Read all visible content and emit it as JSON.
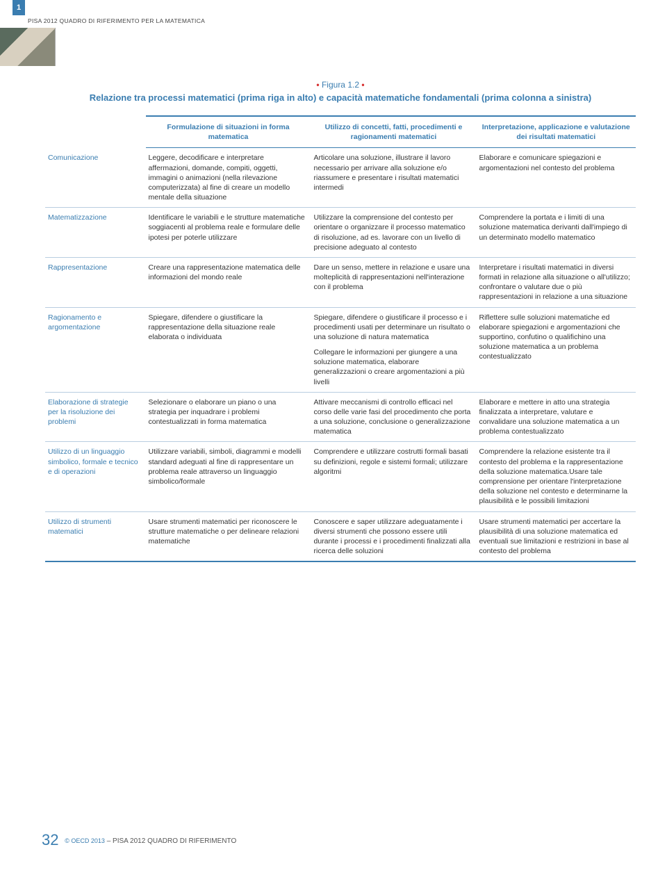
{
  "page_tab": "1",
  "running_head": "PISA 2012 QUADRO DI RIFERIMENTO PER LA MATEMATICA",
  "figure": {
    "label_prefix": "Figura ",
    "label_num": "1.2",
    "title": "Relazione tra processi matematici (prima riga in alto) e capacità matematiche fondamentali (prima colonna a sinistra)"
  },
  "headers": {
    "c1": "",
    "c2": "Formulazione di situazioni in forma matematica",
    "c3": "Utilizzo di concetti, fatti, procedimenti e ragionamenti matematici",
    "c4": "Interpretazione, applicazione e valutazione dei risultati matematici"
  },
  "rows": [
    {
      "label": "Comunicazione",
      "c2": "Leggere, decodificare e interpretare affermazioni, domande, compiti, oggetti, immagini o animazioni (nella  rilevazione computerizzata) al fine di creare un modello mentale della situazione",
      "c3": "Articolare una soluzione, illustrare il lavoro necessario per arrivare alla soluzione e/o riassumere e presentare i risultati matematici intermedi",
      "c4": "Elaborare e comunicare spiegazioni e argomentazioni nel contesto del problema"
    },
    {
      "label": "Matematizzazione",
      "c2": "Identificare le variabili e le strutture matematiche soggiacenti al problema reale e formulare delle ipotesi per poterle utilizzare",
      "c3": "Utilizzare la comprensione del contesto per orientare o organizzare il processo matematico di risoluzione, ad es. lavorare con un livello di precisione adeguato al contesto",
      "c4": "Comprendere la portata e i limiti di una soluzione matematica derivanti dall'impiego di un determinato modello matematico"
    },
    {
      "label": "Rappresentazione",
      "c2": "Creare una rappresentazione matematica delle informazioni del mondo reale",
      "c3": "Dare un senso, mettere in relazione e usare una molteplicità di rappresentazioni nell'interazione con il problema",
      "c4": "Interpretare i risultati matematici in diversi formati in relazione alla situazione o all'utilizzo; confrontare o valutare due o più rappresentazioni in relazione a una situazione"
    },
    {
      "label": "Ragionamento e argomentazione",
      "c2": "Spiegare, difendere o giustificare la rappresentazione della situazione reale elaborata o individuata",
      "c3": "Spiegare, difendere o giustificare il processo e i procedimenti usati per determinare un risultato o una soluzione di natura matematica\n\nCollegare le informazioni per giungere a una soluzione matematica, elaborare generalizzazioni o creare argomentazioni a più livelli",
      "c4": "Riflettere sulle soluzioni matematiche ed elaborare spiegazioni e argomentazioni che supportino, confutino o qualifichino una soluzione matematica a un problema contestualizzato"
    },
    {
      "label": "Elaborazione di strategie per la risoluzione dei problemi",
      "c2": "Selezionare o elaborare un piano o una strategia per inquadrare i problemi contestualizzati in forma matematica",
      "c3": "Attivare meccanismi di controllo efficaci nel corso delle varie fasi del procedimento che porta a una soluzione, conclusione o generalizzazione matematica",
      "c4": "Elaborare e mettere in atto una strategia finalizzata a interpretare, valutare e convalidare una soluzione matematica a un problema contestualizzato"
    },
    {
      "label": "Utilizzo di un linguaggio simbolico, formale e tecnico e di operazioni",
      "c2": "Utilizzare variabili, simboli, diagrammi e modelli standard adeguati al fine di rappresentare un problema reale attraverso un linguaggio simbolico/formale",
      "c3": "Comprendere e utilizzare costrutti formali basati su definizioni, regole e sistemi formali; utilizzare algoritmi",
      "c4": "Comprendere la relazione esistente tra il contesto del problema e la rappresentazione della soluzione matematica.Usare tale comprensione per orientare l'interpretazione della soluzione nel contesto e determinarne la plausibilità e le possibili limitazioni"
    },
    {
      "label": "Utilizzo di strumenti matematici",
      "c2": "Usare strumenti matematici per riconoscere le strutture matematiche o per delineare relazioni matematiche",
      "c3": "Conoscere e saper utilizzare adeguatamente i diversi strumenti che possono essere utili durante i processi e i procedimenti finalizzati alla ricerca delle soluzioni",
      "c4": "Usare strumenti matematici per accertare la plausibilità di una soluzione matematica ed eventuali sue limitazioni e restrizioni in base al contesto del problema"
    }
  ],
  "footer": {
    "page_num": "32",
    "copyright": "© OECD 2013",
    "tail": " – PISA 2012 QUADRO DI RIFERIMENTO"
  }
}
